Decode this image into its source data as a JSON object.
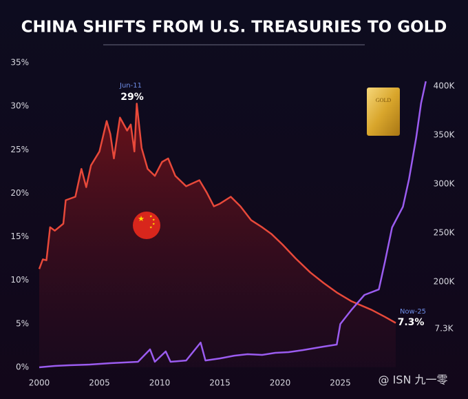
{
  "chart_data": {
    "type": "line",
    "title": "CHINA SHIFTS FROM U.S. TREASURIES TO GOLD",
    "xlim": [
      2000,
      2034
    ],
    "xticks": [
      2000,
      2005,
      2010,
      2015,
      2020,
      2025
    ],
    "ylim": [
      0,
      35
    ],
    "yticks": [
      {
        "value": 0,
        "label": "0%"
      },
      {
        "value": 5,
        "label": "5%"
      },
      {
        "value": 10,
        "label": "10%"
      },
      {
        "value": 15,
        "label": "15%"
      },
      {
        "value": 20,
        "label": "20%"
      },
      {
        "value": 25,
        "label": "25%"
      },
      {
        "value": 30,
        "label": "30%"
      },
      {
        "value": 35,
        "label": "35%"
      }
    ],
    "y2lim": [
      112700,
      423900
    ],
    "y2ticks": [
      {
        "value": 200000,
        "label": "200K"
      },
      {
        "value": 250000,
        "label": "250K"
      },
      {
        "value": 300000,
        "label": "300K"
      },
      {
        "value": 350000,
        "label": "350K"
      },
      {
        "value": 400000,
        "label": "400K"
      }
    ],
    "series": [
      {
        "color": "#e8493a",
        "area": true,
        "x": [
          2000.0,
          2000.3,
          2000.6,
          2000.9,
          2001.3,
          2002.0,
          2002.2,
          2003.0,
          2003.5,
          2003.9,
          2004.3,
          2005.0,
          2005.6,
          2005.9,
          2006.2,
          2006.7,
          2007.3,
          2007.6,
          2007.9,
          2008.1,
          2008.5,
          2009.0,
          2009.6,
          2010.2,
          2010.7,
          2011.3,
          2012.2,
          2013.3,
          2013.9,
          2014.5,
          2015.0,
          2015.9,
          2016.7,
          2017.6,
          2018.5,
          2019.3,
          2020.2,
          2021.3,
          2022.5,
          2023.6,
          2024.7,
          2025.9,
          2027.6,
          2028.7,
          2029.6
        ],
        "values": [
          11.3,
          12.4,
          12.3,
          16.1,
          15.7,
          16.5,
          19.2,
          19.6,
          22.8,
          20.7,
          23.2,
          24.8,
          28.3,
          26.8,
          24.0,
          28.7,
          27.2,
          27.9,
          24.8,
          30.3,
          25.2,
          22.8,
          22.0,
          23.6,
          24.0,
          22.0,
          20.8,
          21.5,
          20.1,
          18.5,
          18.8,
          19.6,
          18.5,
          16.9,
          16.1,
          15.3,
          14.1,
          12.5,
          10.9,
          9.7,
          8.6,
          7.6,
          6.6,
          5.8,
          5.1
        ]
      },
      {
        "color": "#9b5cf0",
        "axis": "y2",
        "x": [
          2000.0,
          2001.3,
          2002.5,
          2004.2,
          2005.9,
          2008.2,
          2009.2,
          2009.6,
          2010.5,
          2010.9,
          2012.2,
          2013.4,
          2013.8,
          2015.0,
          2016.2,
          2017.3,
          2018.5,
          2019.6,
          2020.7,
          2021.9,
          2023.6,
          2024.7,
          2025.0,
          2025.9,
          2027.0,
          2028.2,
          2028.7,
          2029.3,
          2030.2,
          2030.7,
          2031.3,
          2031.7,
          2032.1
        ],
        "values": [
          112700,
          114100,
          114800,
          115500,
          116900,
          118300,
          131000,
          118300,
          128900,
          118300,
          119700,
          138000,
          119700,
          121800,
          124600,
          126100,
          125400,
          127500,
          128200,
          130300,
          133800,
          135900,
          157000,
          171100,
          186600,
          192300,
          220400,
          255600,
          276800,
          304900,
          347200,
          382400,
          404900
        ]
      }
    ],
    "annotations": [
      {
        "text": "Jun-11",
        "value_text": "29%"
      },
      {
        "text": "Now-25",
        "value_text": "7.3%"
      }
    ],
    "y2_note": "7.3K",
    "gold_bar_label": "GOLD",
    "watermark": "@ ISN 九一零"
  }
}
